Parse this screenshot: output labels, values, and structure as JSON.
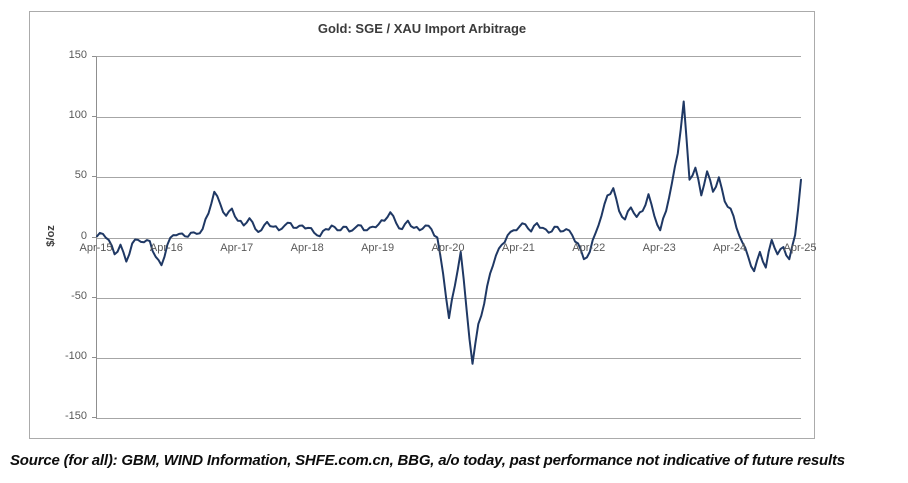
{
  "source_note": "Source (for all): GBM, WIND Information, SHFE.com.cn, BBG, a/o today, past performance not indicative of future results",
  "chart_data": {
    "type": "line",
    "title": "Gold: SGE / XAU Import Arbitrage",
    "xlabel": "",
    "ylabel": "$/oz",
    "ylim": [
      -150,
      150
    ],
    "y_ticks": [
      150,
      100,
      50,
      0,
      -50,
      -100,
      -150
    ],
    "x_tick_labels": [
      "Apr-15",
      "Apr-16",
      "Apr-17",
      "Apr-18",
      "Apr-19",
      "Apr-20",
      "Apr-21",
      "Apr-22",
      "Apr-23",
      "Apr-24",
      "Apr-25"
    ],
    "grid": "horizontal",
    "legend": "none",
    "line_color": "#1f3864",
    "gridline_color": "#a6a6a6",
    "series": [
      {
        "name": "SGE / XAU import arbitrage",
        "x_unit": "monthly",
        "x_start": "2015-04",
        "x_end": "2025-04",
        "values": [
          1,
          3,
          -2,
          -14,
          -6,
          -20,
          -5,
          -2,
          -4,
          -3,
          -16,
          -23,
          -6,
          2,
          3,
          1,
          4,
          3,
          7,
          20,
          38,
          28,
          18,
          24,
          14,
          10,
          16,
          7,
          6,
          13,
          9,
          6,
          10,
          12,
          8,
          10,
          8,
          4,
          1,
          7,
          10,
          6,
          9,
          5,
          8,
          10,
          6,
          9,
          11,
          14,
          21,
          12,
          7,
          14,
          8,
          6,
          10,
          7,
          0,
          -30,
          -67,
          -40,
          -12,
          -60,
          -105,
          -72,
          -55,
          -30,
          -15,
          -6,
          2,
          6,
          9,
          11,
          5,
          12,
          8,
          4,
          9,
          5,
          7,
          2,
          -5,
          -18,
          -12,
          4,
          18,
          35,
          41,
          22,
          15,
          25,
          17,
          22,
          36,
          18,
          6,
          22,
          45,
          70,
          113,
          48,
          58,
          35,
          55,
          38,
          50,
          30,
          24,
          8,
          -4,
          -16,
          -28,
          -12,
          -25,
          -2,
          -14,
          -8,
          -18,
          2,
          48
        ]
      }
    ]
  }
}
